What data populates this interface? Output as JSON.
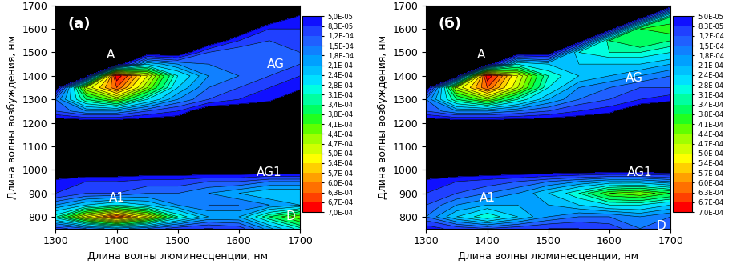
{
  "chart_data": [
    {
      "type": "heatmap",
      "title": "(а)",
      "xlabel": "Длина волны люминесценции, нм",
      "ylabel": "Длина волны возбуждения, нм",
      "x": [
        1300,
        1350,
        1400,
        1450,
        1500,
        1550,
        1600,
        1650,
        1700
      ],
      "y": [
        750,
        800,
        850,
        900,
        950,
        1000,
        1050,
        1100,
        1150,
        1200,
        1250,
        1300,
        1350,
        1400,
        1450,
        1500,
        1550,
        1600,
        1650,
        1700
      ],
      "cells": [
        [
          0.0001,
          0.00015,
          0.0002,
          0.00015,
          0.0001,
          8e-05,
          0.0001,
          0.0002,
          0.0003
        ],
        [
          0.0003,
          0.0005,
          0.00063,
          0.0005,
          0.00031,
          0.00021,
          0.00021,
          0.00034,
          0.00044
        ],
        [
          0.00018,
          0.00024,
          0.00028,
          0.00024,
          0.00018,
          0.00015,
          0.00015,
          0.00018,
          0.00021
        ],
        [
          8.3e-05,
          0.00012,
          0.00012,
          0.00015,
          0.00015,
          0.00018,
          0.00021,
          0.00024,
          0.00024
        ],
        [
          6e-05,
          8.3e-05,
          8.3e-05,
          0.0001,
          0.0001,
          0.00012,
          0.00012,
          0.00015,
          0.00015
        ],
        [
          0,
          0,
          0,
          0,
          0,
          0,
          0,
          0,
          0
        ],
        [
          0,
          0,
          0,
          0,
          0,
          0,
          0,
          0,
          0
        ],
        [
          0,
          0,
          0,
          0,
          0,
          0,
          0,
          0,
          0
        ],
        [
          0,
          0,
          0,
          0,
          0,
          0,
          0,
          0,
          0
        ],
        [
          0,
          0,
          0,
          0,
          0,
          0,
          0,
          0,
          0
        ],
        [
          0.00012,
          0.00018,
          0.00018,
          0.00012,
          8.3e-05,
          0,
          0,
          0,
          0
        ],
        [
          0.00015,
          0.00034,
          0.00044,
          0.00028,
          0.00018,
          0.00012,
          8.3e-05,
          6e-05,
          0
        ],
        [
          0,
          0.00047,
          0.00063,
          0.00044,
          0.00024,
          0.00015,
          0.00012,
          8.3e-05,
          6e-05
        ],
        [
          0,
          0,
          0.0007,
          0.0005,
          0.00028,
          0.00018,
          0.00015,
          0.00012,
          8.3e-05
        ],
        [
          0,
          0,
          0,
          0.00024,
          0.00018,
          0.00015,
          0.00015,
          0.00015,
          0.00012
        ],
        [
          0,
          0,
          0,
          0,
          0,
          0.00012,
          0.00015,
          0.00015,
          0.00012
        ],
        [
          0,
          0,
          0,
          0,
          0,
          0,
          8.3e-05,
          0.00012,
          0.00012
        ],
        [
          0,
          0,
          0,
          0,
          0,
          0,
          0,
          8.3e-05,
          8.3e-05
        ],
        [
          0,
          0,
          0,
          0,
          0,
          0,
          0,
          0,
          6e-05
        ],
        [
          0,
          0,
          0,
          0,
          0,
          0,
          0,
          0,
          0
        ]
      ],
      "xlim": [
        1300,
        1700
      ],
      "ylim": [
        750,
        1700
      ],
      "xticks": [
        1300,
        1400,
        1500,
        1600,
        1700
      ],
      "yticks": [
        800,
        900,
        1000,
        1100,
        1200,
        1300,
        1400,
        1500,
        1600,
        1700
      ],
      "colorbar_lim": [
        5e-05,
        0.0007
      ],
      "colorbar_ticks": [
        {
          "value": 5e-05,
          "label": "5,0E-05"
        },
        {
          "value": 8.3e-05,
          "label": "8,3E-05"
        },
        {
          "value": 0.00012,
          "label": "1,2E-04"
        },
        {
          "value": 0.00015,
          "label": "1,5E-04"
        },
        {
          "value": 0.00018,
          "label": "1,8E-04"
        },
        {
          "value": 0.00021,
          "label": "2,1E-04"
        },
        {
          "value": 0.00024,
          "label": "2,4E-04"
        },
        {
          "value": 0.00028,
          "label": "2,8E-04"
        },
        {
          "value": 0.00031,
          "label": "3,1E-04"
        },
        {
          "value": 0.00034,
          "label": "3,4E-04"
        },
        {
          "value": 0.00038,
          "label": "3,8E-04"
        },
        {
          "value": 0.00041,
          "label": "4,1E-04"
        },
        {
          "value": 0.00044,
          "label": "4,4E-04"
        },
        {
          "value": 0.00047,
          "label": "4,7E-04"
        },
        {
          "value": 0.0005,
          "label": "5,0E-04"
        },
        {
          "value": 0.00054,
          "label": "5,4E-04"
        },
        {
          "value": 0.00057,
          "label": "5,7E-04"
        },
        {
          "value": 0.0006,
          "label": "6,0E-04"
        },
        {
          "value": 0.00063,
          "label": "6,3E-04"
        },
        {
          "value": 0.00067,
          "label": "6,7E-04"
        },
        {
          "value": 0.0007,
          "label": "7,0E-04"
        }
      ],
      "annotations": [
        {
          "text": "A",
          "x": 1390,
          "y": 1490
        },
        {
          "text": "AG",
          "x": 1660,
          "y": 1450
        },
        {
          "text": "A1",
          "x": 1400,
          "y": 880
        },
        {
          "text": "AG1",
          "x": 1650,
          "y": 990
        },
        {
          "text": "D",
          "x": 1685,
          "y": 800
        }
      ]
    },
    {
      "type": "heatmap",
      "title": "(б)",
      "xlabel": "Длина волны люминесценции, нм",
      "ylabel": "Длина волны возбуждения, нм",
      "x": [
        1300,
        1350,
        1400,
        1450,
        1500,
        1550,
        1600,
        1650,
        1700
      ],
      "y": [
        750,
        800,
        850,
        900,
        950,
        1000,
        1050,
        1100,
        1150,
        1200,
        1250,
        1300,
        1350,
        1400,
        1450,
        1500,
        1550,
        1600,
        1650,
        1700
      ],
      "cells": [
        [
          6e-05,
          0.0001,
          0.00012,
          0.0001,
          8.3e-05,
          8.3e-05,
          0.0001,
          0.00015,
          0.00012
        ],
        [
          0.00015,
          0.00024,
          0.00031,
          0.00024,
          0.00018,
          0.00015,
          0.00015,
          0.00018,
          0.00015
        ],
        [
          0.00012,
          0.00018,
          0.00021,
          0.00021,
          0.00021,
          0.00024,
          0.00028,
          0.00028,
          0.00024
        ],
        [
          8.3e-05,
          0.00012,
          0.00015,
          0.00018,
          0.00024,
          0.00031,
          0.00041,
          0.00044,
          0.00038
        ],
        [
          6e-05,
          8.3e-05,
          0.0001,
          0.00012,
          0.00015,
          0.00018,
          0.00021,
          0.00021,
          0.00018
        ],
        [
          0,
          0,
          0,
          0,
          0,
          0,
          0,
          0,
          0
        ],
        [
          0,
          0,
          0,
          0,
          0,
          0,
          0,
          0,
          0
        ],
        [
          0,
          0,
          0,
          0,
          0,
          0,
          0,
          0,
          0
        ],
        [
          0,
          0,
          0,
          0,
          0,
          0,
          0,
          0,
          0
        ],
        [
          0,
          0,
          0,
          0,
          0,
          0,
          0,
          0,
          0
        ],
        [
          0.00012,
          0.00018,
          0.00018,
          0.00015,
          0.00012,
          8.3e-05,
          6e-05,
          0,
          0
        ],
        [
          0.00015,
          0.00034,
          0.00044,
          0.00031,
          0.00021,
          0.00015,
          0.00012,
          8.3e-05,
          6e-05
        ],
        [
          0,
          0.00047,
          0.00063,
          0.00047,
          0.00028,
          0.00018,
          0.00015,
          0.00012,
          0.00012
        ],
        [
          0,
          0,
          0.0007,
          0.0005,
          0.00031,
          0.00024,
          0.00021,
          0.00018,
          0.00015
        ],
        [
          0,
          0,
          0,
          0.00028,
          0.00024,
          0.00024,
          0.00024,
          0.00024,
          0.00021
        ],
        [
          0,
          0,
          0,
          0,
          0,
          0.00028,
          0.00031,
          0.00031,
          0.00028
        ],
        [
          0,
          0,
          0,
          0,
          0,
          0,
          0.00034,
          0.00038,
          0.00034
        ],
        [
          0,
          0,
          0,
          0,
          0,
          0,
          0,
          0.00038,
          0.00041
        ],
        [
          0,
          0,
          0,
          0,
          0,
          0,
          0,
          0,
          0.00034
        ],
        [
          0,
          0,
          0,
          0,
          0,
          0,
          0,
          0,
          0
        ]
      ],
      "xlim": [
        1300,
        1700
      ],
      "ylim": [
        750,
        1700
      ],
      "xticks": [
        1300,
        1400,
        1500,
        1600,
        1700
      ],
      "yticks": [
        800,
        900,
        1000,
        1100,
        1200,
        1300,
        1400,
        1500,
        1600,
        1700
      ],
      "colorbar_lim": [
        5e-05,
        0.0007
      ],
      "colorbar_ticks": [
        {
          "value": 5e-05,
          "label": "5,0E-05"
        },
        {
          "value": 8.3e-05,
          "label": "8,3E-05"
        },
        {
          "value": 0.00012,
          "label": "1,2E-04"
        },
        {
          "value": 0.00015,
          "label": "1,5E-04"
        },
        {
          "value": 0.00018,
          "label": "1,8E-04"
        },
        {
          "value": 0.00021,
          "label": "2,1E-04"
        },
        {
          "value": 0.00024,
          "label": "2,4E-04"
        },
        {
          "value": 0.00028,
          "label": "2,8E-04"
        },
        {
          "value": 0.00031,
          "label": "3,1E-04"
        },
        {
          "value": 0.00034,
          "label": "3,4E-04"
        },
        {
          "value": 0.00038,
          "label": "3,8E-04"
        },
        {
          "value": 0.00041,
          "label": "4,1E-04"
        },
        {
          "value": 0.00044,
          "label": "4,4E-04"
        },
        {
          "value": 0.00047,
          "label": "4,7E-04"
        },
        {
          "value": 0.0005,
          "label": "5,0E-04"
        },
        {
          "value": 0.00054,
          "label": "5,4E-04"
        },
        {
          "value": 0.00057,
          "label": "5,7E-04"
        },
        {
          "value": 0.0006,
          "label": "6,0E-04"
        },
        {
          "value": 0.00063,
          "label": "6,3E-04"
        },
        {
          "value": 0.00067,
          "label": "6,7E-04"
        },
        {
          "value": 0.0007,
          "label": "7,0E-04"
        }
      ],
      "annotations": [
        {
          "text": "A",
          "x": 1390,
          "y": 1490
        },
        {
          "text": "AG",
          "x": 1640,
          "y": 1390
        },
        {
          "text": "A1",
          "x": 1400,
          "y": 880
        },
        {
          "text": "AG1",
          "x": 1650,
          "y": 990
        },
        {
          "text": "D",
          "x": 1685,
          "y": 760
        }
      ]
    }
  ]
}
